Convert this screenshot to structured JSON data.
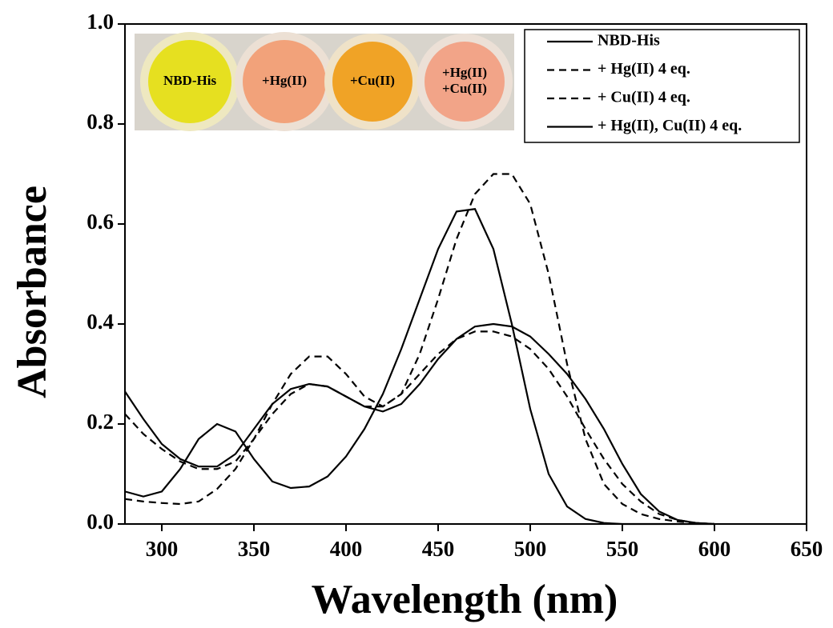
{
  "chart_data": {
    "type": "line",
    "xlabel": "Wavelength (nm)",
    "ylabel": "Absorbance",
    "x": [
      280,
      290,
      300,
      310,
      320,
      330,
      340,
      350,
      360,
      370,
      380,
      390,
      400,
      410,
      420,
      430,
      440,
      450,
      460,
      470,
      480,
      490,
      500,
      510,
      520,
      530,
      540,
      550,
      560,
      570,
      580,
      590,
      600
    ],
    "series": [
      {
        "name": "NBD-His",
        "color": "#000000",
        "dash": false,
        "values": [
          0.065,
          0.055,
          0.065,
          0.11,
          0.17,
          0.2,
          0.185,
          0.13,
          0.085,
          0.072,
          0.075,
          0.095,
          0.135,
          0.19,
          0.26,
          0.35,
          0.45,
          0.55,
          0.625,
          0.63,
          0.55,
          0.4,
          0.23,
          0.1,
          0.035,
          0.01,
          0.002,
          0,
          0,
          0,
          0,
          0,
          0
        ]
      },
      {
        "name": "+ Hg(II) 4 eq.",
        "color": "#000000",
        "dash": true,
        "values": [
          0.05,
          0.045,
          0.042,
          0.04,
          0.045,
          0.07,
          0.11,
          0.17,
          0.24,
          0.3,
          0.335,
          0.335,
          0.3,
          0.255,
          0.235,
          0.26,
          0.34,
          0.45,
          0.57,
          0.66,
          0.7,
          0.7,
          0.64,
          0.5,
          0.32,
          0.17,
          0.08,
          0.04,
          0.02,
          0.01,
          0.005,
          0.002,
          0
        ]
      },
      {
        "name": "+ Cu(II) 4 eq.",
        "color": "#000000",
        "dash": true,
        "values": [
          0.22,
          0.18,
          0.15,
          0.125,
          0.11,
          0.11,
          0.125,
          0.17,
          0.22,
          0.26,
          0.28,
          0.275,
          0.255,
          0.235,
          0.235,
          0.26,
          0.3,
          0.34,
          0.37,
          0.385,
          0.385,
          0.375,
          0.35,
          0.31,
          0.255,
          0.19,
          0.13,
          0.08,
          0.045,
          0.02,
          0.008,
          0.002,
          0
        ]
      },
      {
        "name": "+ Hg(II), Cu(II) 4 eq.",
        "color": "#000000",
        "dash": false,
        "values": [
          0.265,
          0.21,
          0.16,
          0.13,
          0.115,
          0.115,
          0.14,
          0.19,
          0.24,
          0.27,
          0.28,
          0.275,
          0.255,
          0.235,
          0.225,
          0.24,
          0.28,
          0.33,
          0.37,
          0.395,
          0.4,
          0.395,
          0.375,
          0.34,
          0.3,
          0.25,
          0.19,
          0.12,
          0.06,
          0.025,
          0.008,
          0.002,
          0
        ]
      }
    ],
    "xlim": [
      280,
      650
    ],
    "xticks": [
      300,
      350,
      400,
      450,
      500,
      550,
      600,
      650
    ],
    "ylim": [
      0,
      1
    ],
    "yticks": [
      {
        "value": 0,
        "label": "0.0"
      },
      {
        "value": 0.2,
        "label": "0.2"
      },
      {
        "value": 0.4,
        "label": "0.4"
      },
      {
        "value": 0.6,
        "label": "0.6"
      },
      {
        "value": 0.8,
        "label": "0.8"
      },
      {
        "value": 1,
        "label": "1.0"
      }
    ],
    "legend": "upper right",
    "photo_labels": [
      [
        "NBD-His"
      ],
      [
        "+Hg(II)"
      ],
      [
        "+Cu(II)"
      ],
      [
        "+Hg(II)",
        "+Cu(II)"
      ]
    ]
  }
}
